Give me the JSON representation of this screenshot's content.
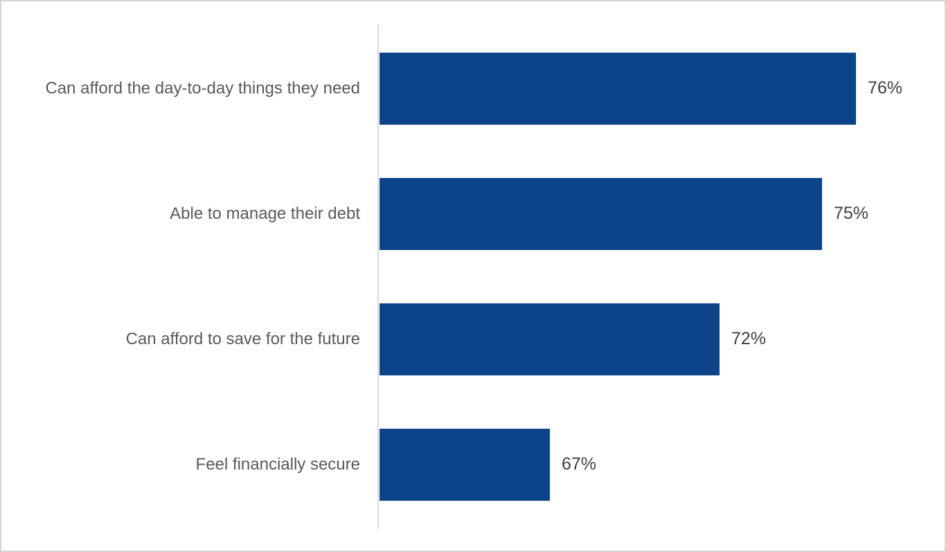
{
  "chart_data": {
    "type": "bar",
    "orientation": "horizontal",
    "title": "",
    "xlabel": "",
    "ylabel": "",
    "categories": [
      "Can afford the day-to-day things they need",
      "Able to manage their debt",
      "Can afford to save for the future",
      "Feel financially secure"
    ],
    "values": [
      76,
      75,
      72,
      67
    ],
    "value_labels": [
      "76%",
      "75%",
      "72%",
      "67%"
    ],
    "value_unit": "%",
    "xlim": [
      62,
      78
    ],
    "grid": false,
    "legend": false,
    "data_labels_position": "outside-end",
    "colors": {
      "bar": "#0c4489",
      "category_label": "#595959",
      "value_label": "#404040",
      "axis_line": "#d9d9d9",
      "frame_border": "#d3d3d3",
      "background": "#ffffff"
    }
  }
}
